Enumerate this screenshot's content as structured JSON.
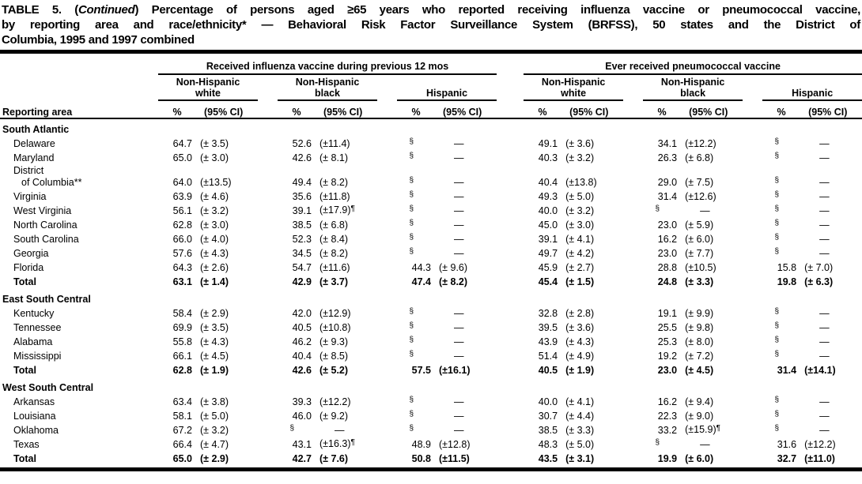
{
  "title": {
    "line1_pre": "TABLE 5. (",
    "line1_italic": "Continued",
    "line1_post": ") Percentage of persons aged ≥65 years who reported receiving influenza vaccine or pneumococcal vaccine,",
    "line2": "by reporting area and race/ethnicity* — Behavioral Risk Factor Surveillance System (BRFSS), 50 states and the District of",
    "line3": "Columbia, 1995 and 1997 combined"
  },
  "table": {
    "row_header": "Reporting area",
    "groups": [
      "Received influenza vaccine during previous 12 mos",
      "Ever received pneumococcal vaccine"
    ],
    "subgroups": [
      "Non-Hispanic\nwhite",
      "Non-Hispanic\nblack",
      "Hispanic"
    ],
    "measure_headers": [
      "%",
      "(95% CI)"
    ],
    "footnote_symbols": {
      "suppressed": "§",
      "wide_ci": "¶",
      "missing": "—"
    },
    "sections": [
      {
        "name": "South Atlantic",
        "rows": [
          {
            "area": "Delaware",
            "values": [
              "64.7",
              "(± 3.5)",
              "52.6",
              "(±11.4)",
              "§",
              "—",
              "49.1",
              "(± 3.6)",
              "34.1",
              "(±12.2)",
              "§",
              "—"
            ]
          },
          {
            "area": "Maryland",
            "values": [
              "65.0",
              "(± 3.0)",
              "42.6",
              "(± 8.1)",
              "§",
              "—",
              "40.3",
              "(± 3.2)",
              "26.3",
              "(± 6.8)",
              "§",
              "—"
            ]
          },
          {
            "area": "District",
            "area2": "of Columbia**",
            "values": [
              "64.0",
              "(±13.5)",
              "49.4",
              "(± 8.2)",
              "§",
              "—",
              "40.4",
              "(±13.8)",
              "29.0",
              "(± 7.5)",
              "§",
              "—"
            ]
          },
          {
            "area": "Virginia",
            "values": [
              "63.9",
              "(± 4.6)",
              "35.6",
              "(±11.8)",
              "§",
              "—",
              "49.3",
              "(± 5.0)",
              "31.4",
              "(±12.6)",
              "§",
              "—"
            ]
          },
          {
            "area": "West Virginia",
            "values": [
              "56.1",
              "(± 3.2)",
              "39.1",
              "(±17.9)¶",
              "§",
              "—",
              "40.0",
              "(± 3.2)",
              "§",
              "—",
              "§",
              "—"
            ]
          },
          {
            "area": "North Carolina",
            "values": [
              "62.8",
              "(± 3.0)",
              "38.5",
              "(± 6.8)",
              "§",
              "—",
              "45.0",
              "(± 3.0)",
              "23.0",
              "(± 5.9)",
              "§",
              "—"
            ]
          },
          {
            "area": "South Carolina",
            "values": [
              "66.0",
              "(± 4.0)",
              "52.3",
              "(± 8.4)",
              "§",
              "—",
              "39.1",
              "(± 4.1)",
              "16.2",
              "(± 6.0)",
              "§",
              "—"
            ]
          },
          {
            "area": "Georgia",
            "values": [
              "57.6",
              "(± 4.3)",
              "34.5",
              "(± 8.2)",
              "§",
              "—",
              "49.7",
              "(± 4.2)",
              "23.0",
              "(± 7.7)",
              "§",
              "—"
            ]
          },
          {
            "area": "Florida",
            "values": [
              "64.3",
              "(± 2.6)",
              "54.7",
              "(±11.6)",
              "44.3",
              "(± 9.6)",
              "45.9",
              "(± 2.7)",
              "28.8",
              "(±10.5)",
              "15.8",
              "(± 7.0)"
            ]
          },
          {
            "area": "Total",
            "bold": true,
            "values": [
              "63.1",
              "(± 1.4)",
              "42.9",
              "(± 3.7)",
              "47.4",
              "(± 8.2)",
              "45.4",
              "(± 1.5)",
              "24.8",
              "(± 3.3)",
              "19.8",
              "(± 6.3)"
            ]
          }
        ]
      },
      {
        "name": "East South Central",
        "rows": [
          {
            "area": "Kentucky",
            "values": [
              "58.4",
              "(± 2.9)",
              "42.0",
              "(±12.9)",
              "§",
              "—",
              "32.8",
              "(± 2.8)",
              "19.1",
              "(± 9.9)",
              "§",
              "—"
            ]
          },
          {
            "area": "Tennessee",
            "values": [
              "69.9",
              "(± 3.5)",
              "40.5",
              "(±10.8)",
              "§",
              "—",
              "39.5",
              "(± 3.6)",
              "25.5",
              "(± 9.8)",
              "§",
              "—"
            ]
          },
          {
            "area": "Alabama",
            "values": [
              "55.8",
              "(± 4.3)",
              "46.2",
              "(± 9.3)",
              "§",
              "—",
              "43.9",
              "(± 4.3)",
              "25.3",
              "(± 8.0)",
              "§",
              "—"
            ]
          },
          {
            "area": "Mississippi",
            "values": [
              "66.1",
              "(± 4.5)",
              "40.4",
              "(± 8.5)",
              "§",
              "—",
              "51.4",
              "(± 4.9)",
              "19.2",
              "(± 7.2)",
              "§",
              "—"
            ]
          },
          {
            "area": "Total",
            "bold": true,
            "values": [
              "62.8",
              "(± 1.9)",
              "42.6",
              "(± 5.2)",
              "57.5",
              "(±16.1)",
              "40.5",
              "(± 1.9)",
              "23.0",
              "(± 4.5)",
              "31.4",
              "(±14.1)"
            ]
          }
        ]
      },
      {
        "name": "West South Central",
        "rows": [
          {
            "area": "Arkansas",
            "values": [
              "63.4",
              "(± 3.8)",
              "39.3",
              "(±12.2)",
              "§",
              "—",
              "40.0",
              "(± 4.1)",
              "16.2",
              "(± 9.4)",
              "§",
              "—"
            ]
          },
          {
            "area": "Louisiana",
            "values": [
              "58.1",
              "(± 5.0)",
              "46.0",
              "(± 9.2)",
              "§",
              "—",
              "30.7",
              "(± 4.4)",
              "22.3",
              "(± 9.0)",
              "§",
              "—"
            ]
          },
          {
            "area": "Oklahoma",
            "values": [
              "67.2",
              "(± 3.2)",
              "§",
              "—",
              "§",
              "—",
              "38.5",
              "(± 3.3)",
              "33.2",
              "(±15.9)¶",
              "§",
              "—"
            ]
          },
          {
            "area": "Texas",
            "values": [
              "66.4",
              "(± 4.7)",
              "43.1",
              "(±16.3)¶",
              "48.9",
              "(±12.8)",
              "48.3",
              "(± 5.0)",
              "§",
              "—",
              "31.6",
              "(±12.2)"
            ]
          },
          {
            "area": "Total",
            "bold": true,
            "values": [
              "65.0",
              "(± 2.9)",
              "42.7",
              "(± 7.6)",
              "50.8",
              "(±11.5)",
              "43.5",
              "(± 3.1)",
              "19.9",
              "(± 6.0)",
              "32.7",
              "(±11.0)"
            ]
          }
        ]
      }
    ]
  }
}
